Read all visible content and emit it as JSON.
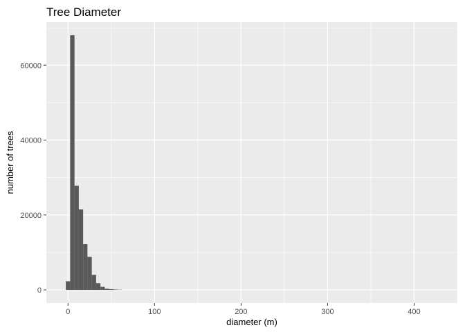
{
  "chart_data": {
    "type": "bar",
    "title": "Tree Diameter",
    "xlabel": "diameter (m)",
    "ylabel": "number of trees",
    "xlim": [
      -25,
      450
    ],
    "ylim": [
      -3500,
      71500
    ],
    "x_ticks": [
      0,
      100,
      200,
      300,
      400
    ],
    "y_ticks": [
      0,
      20000,
      40000,
      60000
    ],
    "y_tick_labels": [
      "0",
      "20000",
      "40000",
      "60000"
    ],
    "grid": true,
    "bin_width": 5,
    "bins": [
      {
        "x": 0,
        "count": 2300
      },
      {
        "x": 5,
        "count": 68000
      },
      {
        "x": 10,
        "count": 27800
      },
      {
        "x": 15,
        "count": 21500
      },
      {
        "x": 20,
        "count": 12200
      },
      {
        "x": 25,
        "count": 8800
      },
      {
        "x": 30,
        "count": 4000
      },
      {
        "x": 35,
        "count": 1800
      },
      {
        "x": 40,
        "count": 800
      },
      {
        "x": 45,
        "count": 300
      },
      {
        "x": 50,
        "count": 200
      },
      {
        "x": 55,
        "count": 100
      },
      {
        "x": 60,
        "count": 50
      }
    ],
    "bar_color": "#595959",
    "panel_background": "#ebebeb",
    "grid_color": "#ffffff"
  }
}
